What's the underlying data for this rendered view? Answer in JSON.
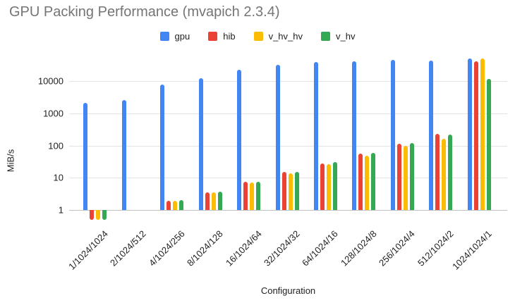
{
  "title": "GPU Packing Performance (mvapich 2.3.4)",
  "chart_data": {
    "type": "bar",
    "title": "GPU Packing Performance (mvapich 2.3.4)",
    "xlabel": "Configuration",
    "ylabel": "MiB/s",
    "y_scale": "log",
    "y_ticks": [
      1,
      10,
      100,
      1000,
      10000
    ],
    "ylim": [
      0.4,
      65000
    ],
    "grid": true,
    "legend_position": "top",
    "categories": [
      "1/1024/1024",
      "2/1024/512",
      "4/1024/256",
      "8/1024/128",
      "16/1024/64",
      "32/1024/32",
      "64/1024/16",
      "128/1024/8",
      "256/1024/4",
      "512/1024/2",
      "1024/1024/1"
    ],
    "series": [
      {
        "name": "gpu",
        "color": "#4285F4",
        "values": [
          2100,
          2550,
          8000,
          12500,
          23000,
          33000,
          39000,
          42000,
          45000,
          43000,
          50000
        ]
      },
      {
        "name": "hib",
        "color": "#EA4335",
        "values": [
          0.5,
          null,
          1.9,
          3.6,
          7.4,
          15,
          28,
          57,
          115,
          235,
          41000
        ]
      },
      {
        "name": "v_hv_hv",
        "color": "#FBBC04",
        "values": [
          0.5,
          null,
          1.9,
          3.6,
          7.2,
          14,
          26,
          48,
          97,
          165,
          50000
        ]
      },
      {
        "name": "v_hv",
        "color": "#34A853",
        "values": [
          0.5,
          null,
          2.0,
          3.7,
          7.5,
          15.5,
          30,
          59,
          120,
          220,
          12000
        ]
      }
    ]
  },
  "colors": {
    "title_text": "#757575",
    "axis_text": "#222222",
    "gridline": "#e3e3e3",
    "baseline": "#c2c2c2",
    "background": "#ffffff"
  }
}
